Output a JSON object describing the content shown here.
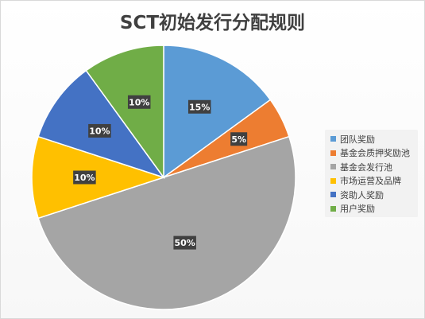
{
  "chart_data": {
    "type": "pie",
    "title": "SCT初始发行分配规则",
    "categories": [
      "团队奖励",
      "基金会质押奖励池",
      "基金会发行池",
      "市场运营及品牌",
      "资助人奖励",
      "用户奖励"
    ],
    "values": [
      15,
      5,
      50,
      10,
      10,
      10
    ],
    "data_labels": [
      "15%",
      "5%",
      "50%",
      "10%",
      "10%",
      "10%"
    ],
    "colors": [
      "#5b9bd5",
      "#ed7d31",
      "#a5a5a5",
      "#ffc000",
      "#4472c4",
      "#70ad47"
    ],
    "legend": "right",
    "start_angle": "12 o'clock",
    "direction": "clockwise"
  }
}
